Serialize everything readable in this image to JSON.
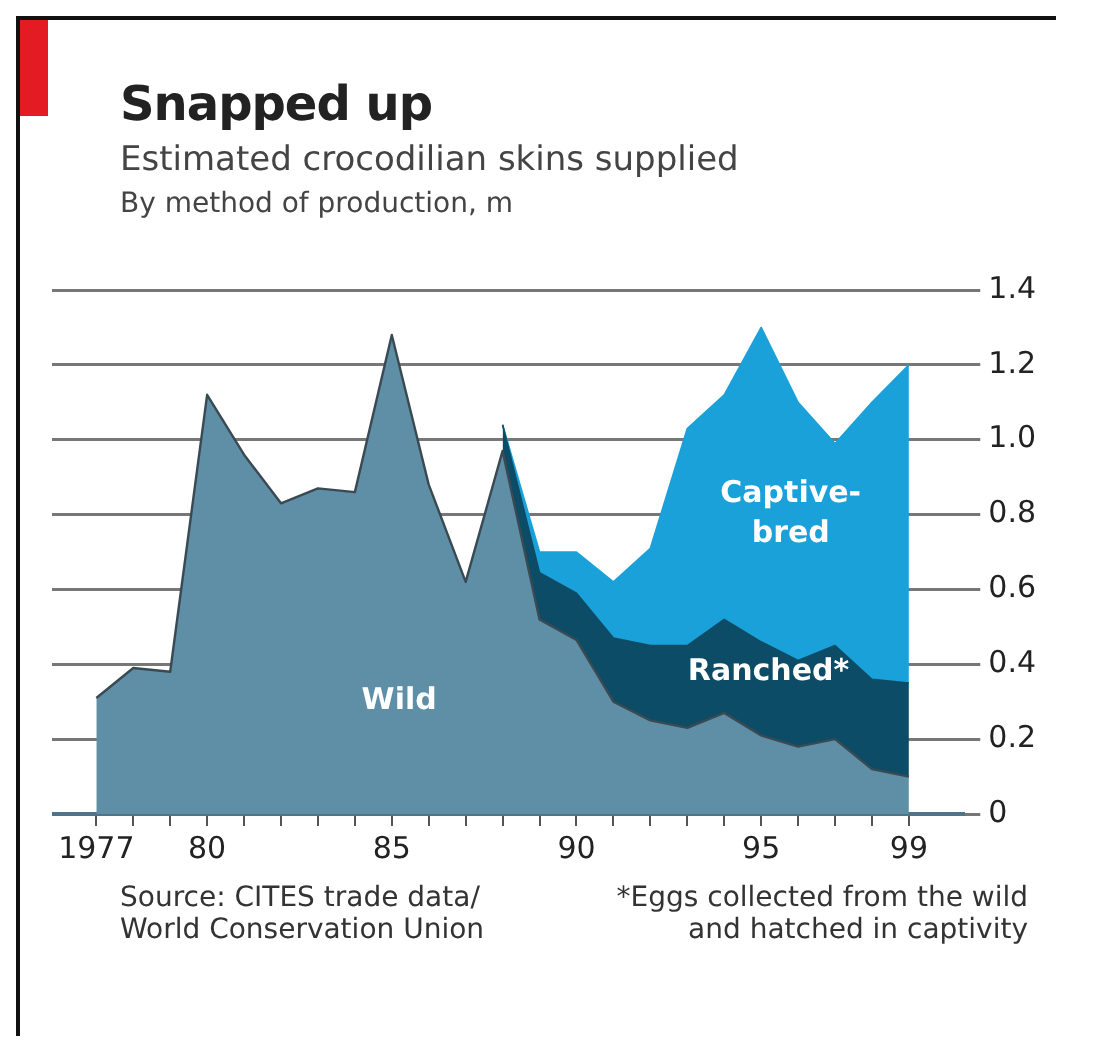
{
  "chart_data": {
    "type": "area",
    "title": "Snapped up",
    "subtitle": "Estimated crocodilian skins supplied",
    "ylabel": "By method of production, m",
    "x": [
      1977,
      1978,
      1979,
      1980,
      1981,
      1982,
      1983,
      1984,
      1985,
      1986,
      1987,
      1988,
      1989,
      1990,
      1991,
      1992,
      1993,
      1994,
      1995,
      1996,
      1997,
      1998,
      1999
    ],
    "stacked": true,
    "series": [
      {
        "name": "Wild",
        "color": "#5e8fa7",
        "values": [
          0.31,
          0.39,
          0.38,
          1.12,
          0.96,
          0.83,
          0.87,
          0.86,
          1.28,
          0.88,
          0.62,
          0.97,
          0.52,
          0.465,
          0.3,
          0.25,
          0.23,
          0.27,
          0.21,
          0.18,
          0.2,
          0.12,
          0.1
        ]
      },
      {
        "name": "Ranched*",
        "color": "#0c4c66",
        "values": [
          null,
          null,
          null,
          null,
          null,
          null,
          null,
          null,
          null,
          null,
          null,
          0.07,
          0.125,
          0.125,
          0.17,
          0.2,
          0.22,
          0.25,
          0.25,
          0.23,
          0.25,
          0.24,
          0.25
        ]
      },
      {
        "name": "Captive-bred",
        "color": "#1ba1d9",
        "values": [
          null,
          null,
          null,
          null,
          null,
          null,
          null,
          null,
          null,
          null,
          null,
          0,
          0.055,
          0.11,
          0.15,
          0.26,
          0.58,
          0.6,
          0.84,
          0.69,
          0.54,
          0.74,
          0.85
        ]
      }
    ],
    "xlim": [
      1975.8,
      2000.5
    ],
    "xticks": [
      {
        "value": 1977,
        "label": "1977"
      },
      {
        "value": 1978,
        "label": null
      },
      {
        "value": 1979,
        "label": null
      },
      {
        "value": 1980,
        "label": "80"
      },
      {
        "value": 1981,
        "label": null
      },
      {
        "value": 1982,
        "label": null
      },
      {
        "value": 1983,
        "label": null
      },
      {
        "value": 1984,
        "label": null
      },
      {
        "value": 1985,
        "label": "85"
      },
      {
        "value": 1986,
        "label": null
      },
      {
        "value": 1987,
        "label": null
      },
      {
        "value": 1988,
        "label": null
      },
      {
        "value": 1989,
        "label": null
      },
      {
        "value": 1990,
        "label": "90"
      },
      {
        "value": 1991,
        "label": null
      },
      {
        "value": 1992,
        "label": null
      },
      {
        "value": 1993,
        "label": null
      },
      {
        "value": 1994,
        "label": null
      },
      {
        "value": 1995,
        "label": "95"
      },
      {
        "value": 1996,
        "label": null
      },
      {
        "value": 1997,
        "label": null
      },
      {
        "value": 1998,
        "label": null
      },
      {
        "value": 1999,
        "label": "99"
      }
    ],
    "ylim": [
      0,
      1.4
    ],
    "yticks": [
      0,
      0.2,
      0.4,
      0.6,
      0.8,
      {
        "value": 1,
        "label": "1.0"
      },
      1.2,
      1.4
    ],
    "grid": "y",
    "legend": false,
    "annotations": [
      "Source: CITES trade data/ World Conservation Union",
      "*Eggs collected from the wild and hatched in captivity"
    ]
  }
}
